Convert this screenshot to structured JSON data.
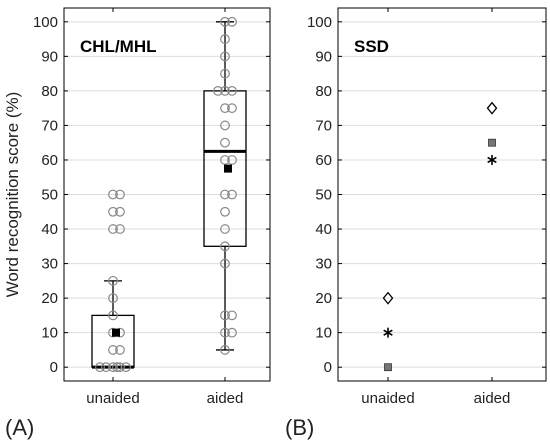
{
  "figure": {
    "panel_a_label": "(A)",
    "panel_b_label": "(B)"
  },
  "chart_data": [
    {
      "type": "scatter",
      "subtype": "box-and-jitter",
      "title": "CHL/MHL",
      "panel": "(A)",
      "xlabel": "",
      "ylabel": "Word recognition score (%)",
      "categories": [
        "unaided",
        "aided"
      ],
      "ylim": [
        -4,
        104
      ],
      "yticks": [
        0,
        10,
        20,
        30,
        40,
        50,
        60,
        70,
        80,
        90,
        100
      ],
      "grid": true,
      "legend": "none",
      "boxes": [
        {
          "category": "unaided",
          "q1": 0,
          "median": 0,
          "q3": 15,
          "whisker_low": 0,
          "whisker_high": 25,
          "mean": 10
        },
        {
          "category": "aided",
          "q1": 35,
          "median": 62.5,
          "q3": 80,
          "whisker_low": 5,
          "whisker_high": 100,
          "mean": 57.5
        }
      ],
      "points": [
        {
          "category": "unaided",
          "values": [
            50,
            50,
            45,
            45,
            40,
            40,
            25,
            20,
            15,
            10,
            10,
            5,
            5,
            0,
            0,
            0,
            0,
            0,
            0
          ]
        },
        {
          "category": "aided",
          "values": [
            100,
            100,
            95,
            90,
            85,
            80,
            80,
            80,
            75,
            75,
            70,
            65,
            60,
            60,
            50,
            50,
            45,
            40,
            35,
            30,
            15,
            15,
            10,
            10,
            5
          ]
        }
      ],
      "colors": {
        "points": "#888888",
        "box": "#000000",
        "mean": "#000000"
      }
    },
    {
      "type": "scatter",
      "title": "SSD",
      "panel": "(B)",
      "xlabel": "",
      "ylabel": "",
      "categories": [
        "unaided",
        "aided"
      ],
      "ylim": [
        -4,
        104
      ],
      "yticks": [
        0,
        10,
        20,
        30,
        40,
        50,
        60,
        70,
        80,
        90,
        100
      ],
      "grid": true,
      "legend": "none",
      "series": [
        {
          "marker": "diamond",
          "values": [
            20,
            75
          ]
        },
        {
          "marker": "asterisk",
          "values": [
            10,
            60
          ]
        },
        {
          "marker": "square",
          "values": [
            0,
            65
          ]
        }
      ],
      "colors": {
        "square": "#777777",
        "diamond": "#000000",
        "asterisk": "#000000"
      }
    }
  ]
}
